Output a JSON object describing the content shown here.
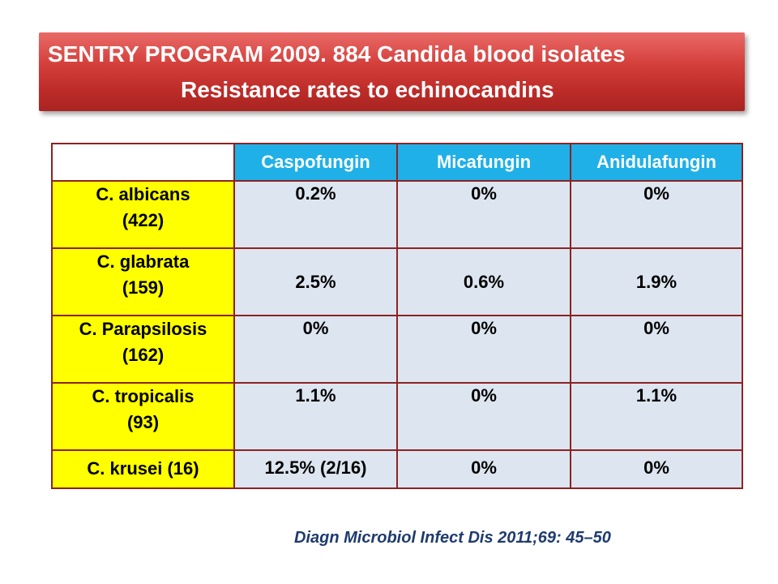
{
  "title": {
    "line1": "SENTRY PROGRAM 2009. 884 Candida blood isolates",
    "line2": "Resistance rates to echinocandins"
  },
  "table": {
    "corner": "",
    "columns": [
      "Caspofungin",
      "Micafungin",
      "Anidulafungin"
    ],
    "rows": [
      {
        "species": "C. albicans",
        "count": "(422)",
        "values": [
          "0.2%",
          "0%",
          "0%"
        ]
      },
      {
        "species": "C. glabrata",
        "count": "(159)",
        "values": [
          "2.5%",
          "0.6%",
          "1.9%"
        ]
      },
      {
        "species": "C. Parapsilosis",
        "count": "(162)",
        "values": [
          "0%",
          "0%",
          "0%"
        ]
      },
      {
        "species": "C. tropicalis",
        "count": "(93)",
        "values": [
          "1.1%",
          "0%",
          "1.1%"
        ]
      },
      {
        "species": "C. krusei (16)",
        "count": "",
        "values": [
          "12.5% (2/16)",
          "0%",
          "0%"
        ]
      }
    ]
  },
  "citation": "Diagn Microbiol Infect Dis 2011;69: 45–50",
  "colors": {
    "title_banner": "#c0302c",
    "header_fill": "#1fb0e8",
    "row_header_fill": "#ffff00",
    "cell_fill": "#dde5f0",
    "border": "#8b2323",
    "citation_text": "#1f3a6e"
  }
}
